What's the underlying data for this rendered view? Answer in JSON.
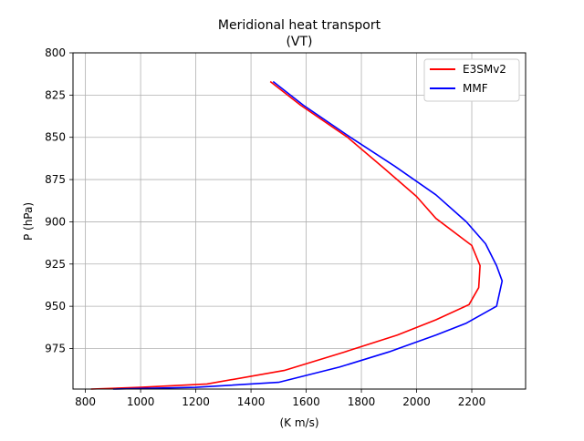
{
  "chart_data": {
    "type": "line",
    "title": "Meridional heat transport",
    "subtitle": "(VT)",
    "xlabel": "(K m/s)",
    "ylabel": "P (hPa)",
    "xlim": [
      755,
      2395
    ],
    "ylim": [
      999,
      800
    ],
    "x_ticks": [
      800,
      1000,
      1200,
      1400,
      1600,
      1800,
      2000,
      2200
    ],
    "y_ticks": [
      800,
      825,
      850,
      875,
      900,
      925,
      950,
      975
    ],
    "grid": true,
    "legend_position": "top-right",
    "series": [
      {
        "name": "E3SMv2",
        "color": "#ff0000",
        "points": [
          [
            1470,
            817
          ],
          [
            1580,
            831
          ],
          [
            1750,
            850
          ],
          [
            1880,
            868
          ],
          [
            2000,
            885
          ],
          [
            2070,
            898
          ],
          [
            2200,
            914
          ],
          [
            2230,
            926
          ],
          [
            2225,
            939
          ],
          [
            2190,
            949
          ],
          [
            2070,
            958
          ],
          [
            1930,
            967
          ],
          [
            1740,
            977
          ],
          [
            1520,
            988
          ],
          [
            1240,
            996
          ],
          [
            1000,
            998
          ],
          [
            820,
            999
          ]
        ]
      },
      {
        "name": "MMF",
        "color": "#0000ff",
        "points": [
          [
            1480,
            817
          ],
          [
            1590,
            831
          ],
          [
            1760,
            850
          ],
          [
            1920,
            867
          ],
          [
            2070,
            884
          ],
          [
            2180,
            900
          ],
          [
            2250,
            913
          ],
          [
            2290,
            926
          ],
          [
            2310,
            935
          ],
          [
            2290,
            950
          ],
          [
            2180,
            960
          ],
          [
            2070,
            967
          ],
          [
            1900,
            977
          ],
          [
            1720,
            986
          ],
          [
            1500,
            995
          ],
          [
            1200,
            998
          ],
          [
            900,
            999
          ]
        ]
      }
    ]
  }
}
